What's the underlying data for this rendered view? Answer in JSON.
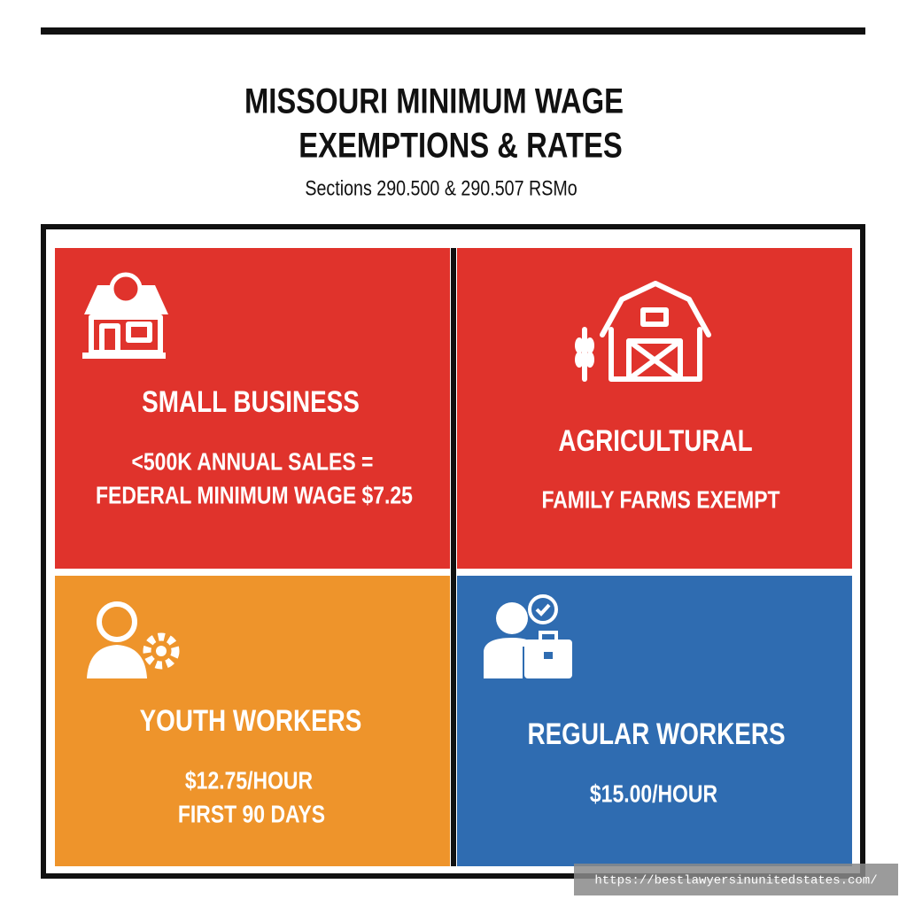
{
  "header": {
    "title_lines": [
      "MISSOURI MINIMUM WAGE",
      "EXEMPTIONS & RATES"
    ],
    "subtitle": "Sections 290.500 & 290.507 RSMo"
  },
  "cards": [
    {
      "title": "SMALL BUSINESS",
      "lines": [
        "<500K ANNUAL SALES =",
        "FEDERAL MINIMUM WAGE $7.25"
      ]
    },
    {
      "title": "AGRICULTURAL",
      "lines": [
        "FAMILY FARMS EXEMPT"
      ]
    },
    {
      "title": "YOUTH WORKERS",
      "lines": [
        "$12.75/HOUR",
        "FIRST 90 DAYS"
      ]
    },
    {
      "title": "REGULAR WORKERS",
      "lines": [
        "$15.00/HOUR"
      ]
    }
  ],
  "watermark": "https://bestlawyersinunitedstates.com/"
}
